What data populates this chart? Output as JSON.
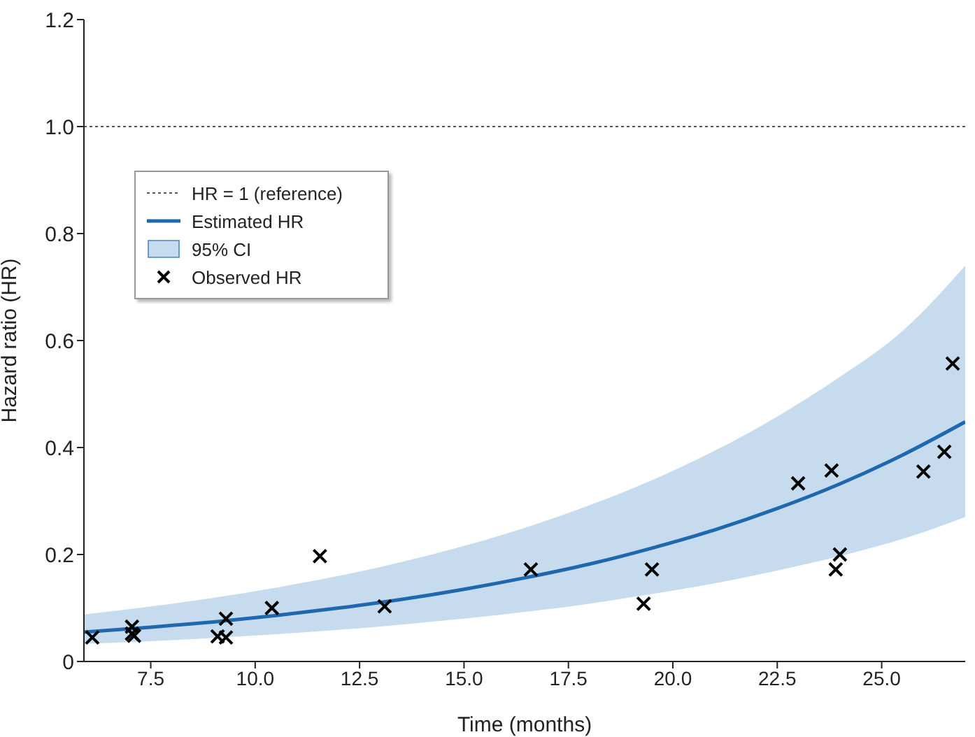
{
  "chart_data": {
    "type": "line",
    "xlabel": "Time (months)",
    "ylabel": "Hazard ratio (HR)",
    "xlim": [
      5.9,
      27
    ],
    "xticks": [
      {
        "value": 7.5,
        "label": "7.5"
      },
      {
        "value": 10,
        "label": "10.0"
      },
      {
        "value": 12.5,
        "label": "12.5"
      },
      {
        "value": 15,
        "label": "15.0"
      },
      {
        "value": 17.5,
        "label": "17.5"
      },
      {
        "value": 20,
        "label": "20.0"
      },
      {
        "value": 22.5,
        "label": "22.5"
      },
      {
        "value": 25,
        "label": "25.0"
      }
    ],
    "ylim": [
      0,
      1.2
    ],
    "yticks": [
      0,
      {
        "value": 0.2,
        "label": "0.2"
      },
      {
        "value": 0.4,
        "label": "0.4"
      },
      {
        "value": 0.6,
        "label": "0.6"
      },
      {
        "value": 0.8,
        "label": "0.8"
      },
      {
        "value": 1,
        "label": "1.0"
      },
      {
        "value": 1.2,
        "label": "1.2"
      }
    ],
    "grid": false,
    "legend": "top left",
    "annotations": [
      "95% CI"
    ],
    "ref_lines": [
      {
        "axis": "y",
        "value": 1,
        "label": "HR = 1 (reference)",
        "color": "#555555",
        "line_style": "dotted"
      }
    ],
    "series": [
      {
        "name": "Estimated HR",
        "color": "#1f68ad",
        "marker": "none",
        "line_style": "solid",
        "x": [
          5.9,
          7.5,
          9,
          10.5,
          12,
          13.5,
          15,
          16.5,
          18,
          19.5,
          21,
          22.5,
          24,
          25.5,
          27
        ],
        "values": [
          0.055,
          0.064,
          0.074,
          0.086,
          0.1,
          0.116,
          0.135,
          0.157,
          0.182,
          0.212,
          0.246,
          0.286,
          0.332,
          0.386,
          0.448
        ],
        "lower": [
          0.033,
          0.038,
          0.044,
          0.051,
          0.059,
          0.069,
          0.08,
          0.093,
          0.108,
          0.126,
          0.146,
          0.17,
          0.197,
          0.229,
          0.27
        ],
        "upper": [
          0.088,
          0.103,
          0.119,
          0.138,
          0.16,
          0.186,
          0.216,
          0.251,
          0.292,
          0.339,
          0.394,
          0.458,
          0.532,
          0.618,
          0.74
        ]
      },
      {
        "type": "scatter",
        "name": "Observed HR",
        "color": "#000000",
        "marker": "cross",
        "x": [
          6.1,
          7.05,
          7.05,
          7.1,
          9.1,
          9.3,
          9.3,
          10.4,
          11.55,
          13.1,
          16.6,
          19.3,
          19.5,
          23,
          23.8,
          23.9,
          24,
          26,
          26.5,
          26.7
        ],
        "values": [
          0.045,
          0.065,
          0.052,
          0.048,
          0.047,
          0.045,
          0.08,
          0.1,
          0.197,
          0.103,
          0.172,
          0.108,
          0.172,
          0.333,
          0.357,
          0.172,
          0.2,
          0.355,
          0.392,
          0.557
        ]
      }
    ]
  }
}
